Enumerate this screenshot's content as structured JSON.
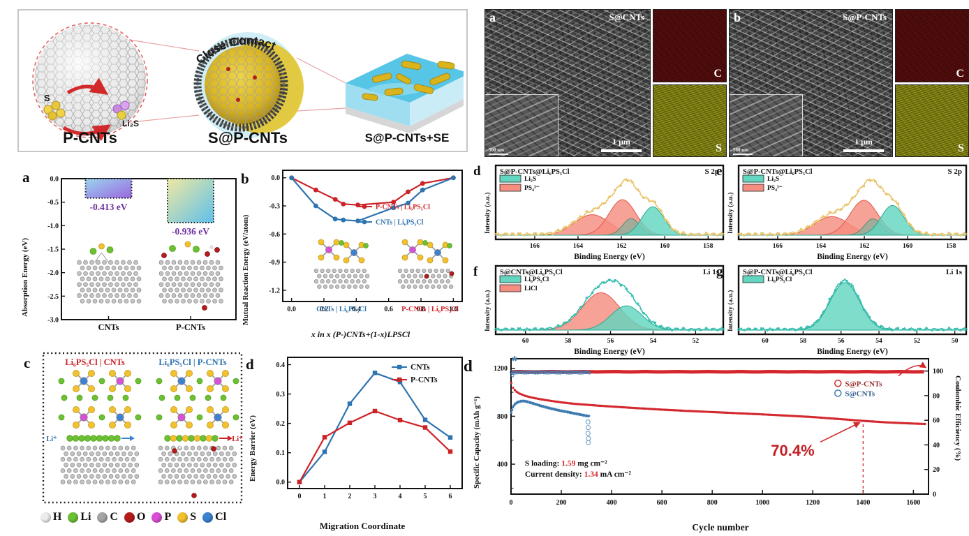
{
  "schematic": {
    "close_contact": "Close Contact",
    "label_s": "S",
    "label_li2s": "Li₂S",
    "label_pcnts": "P-CNTs",
    "label_spcnts": "S@P-CNTs",
    "label_spcnts_se": "S@P-CNTs+SE"
  },
  "sem": {
    "a": {
      "letter": "a",
      "title": "S@CNTs",
      "scale_main": "1 μm",
      "scale_inset": "500 nm",
      "map_c": "C",
      "map_s": "S"
    },
    "b": {
      "letter": "b",
      "title": "S@P-CNTs",
      "scale_main": "1 μm",
      "scale_inset": "500 nm",
      "map_c": "C",
      "map_s": "S"
    }
  },
  "chart_data": [
    {
      "id": "absorption",
      "type": "bar",
      "panel_letter": "a",
      "ylabel": "Absorption Energy (eV)",
      "ylim": [
        -3.0,
        0.0
      ],
      "yticks": [
        0.0,
        -0.5,
        -1.0,
        -1.5,
        -2.0,
        -2.5,
        -3.0
      ],
      "categories": [
        "CNTs",
        "P-CNTs"
      ],
      "values": [
        -0.413,
        -0.936
      ],
      "value_labels": [
        "-0.413 eV",
        "-0.936 eV"
      ],
      "value_color": "#7030a0",
      "bar_gradients": [
        [
          "#9bd4ee",
          "#9a68e0"
        ],
        [
          "#efe9a2",
          "#5fc0ea"
        ]
      ]
    },
    {
      "id": "mutual_reaction",
      "type": "line",
      "panel_letter": "b",
      "ylabel": "Mutual Reaction Energy (eV/atom)",
      "xlabel": "x in x (P-)CNTs+(1-x)LPSCl",
      "x": [
        0.0,
        0.15,
        0.27,
        0.32,
        0.41,
        0.63,
        0.72,
        0.81,
        1.0
      ],
      "series": [
        {
          "name": "P-CNTs | Li₆PS₅Cl",
          "color": "#cc2328",
          "values": [
            0.0,
            -0.13,
            -0.23,
            -0.28,
            -0.29,
            -0.26,
            -0.15,
            -0.06,
            0.0
          ]
        },
        {
          "name": "CNTs | Li₆PS₅Cl",
          "color": "#2e74b0",
          "values": [
            0.0,
            -0.3,
            -0.44,
            -0.45,
            -0.46,
            -0.32,
            -0.27,
            -0.13,
            0.0
          ]
        }
      ],
      "yticks": [
        0.0,
        -0.3,
        -0.6,
        -0.9,
        -1.2
      ],
      "xticks": [
        0.0,
        0.2,
        0.4,
        0.6,
        0.8,
        1.0
      ],
      "inset_labels": [
        {
          "text": "CNTs | Li₆PS₅Cl",
          "color": "#2e74b0"
        },
        {
          "text": "P-CNTs | Li₆PS₅Cl",
          "color": "#cc2328"
        }
      ]
    },
    {
      "id": "interface_models",
      "type": "diagram",
      "panel_letter": "c",
      "titles": [
        {
          "text": "Li₆PS₅Cl | CNTs",
          "color": "#cc2328"
        },
        {
          "text": "Li₆PS₅Cl | P-CNTs",
          "color": "#2e74b0"
        }
      ],
      "li_labels": [
        {
          "text": "Li⁺",
          "color": "#2e74b0"
        },
        {
          "text": "Li⁺",
          "color": "#cc2328"
        }
      ],
      "legend": [
        {
          "label": "H",
          "color": "#ececec"
        },
        {
          "label": "Li",
          "color": "#6cc035"
        },
        {
          "label": "C",
          "color": "#a6a6a6"
        },
        {
          "label": "O",
          "color": "#b51d1d"
        },
        {
          "label": "P",
          "color": "#d94fd9"
        },
        {
          "label": "S",
          "color": "#f2c12e"
        },
        {
          "label": "Cl",
          "color": "#3b82d0"
        }
      ]
    },
    {
      "id": "energy_barrier",
      "type": "line",
      "panel_letter": "d",
      "ylabel": "Energy Barrier (eV)",
      "xlabel": "Migration Coordinate",
      "x": [
        0,
        1,
        2,
        3,
        4,
        5,
        6
      ],
      "series": [
        {
          "name": "CNTs",
          "color": "#2e74b0",
          "values": [
            0.0,
            0.103,
            0.267,
            0.372,
            0.341,
            0.212,
            0.152
          ]
        },
        {
          "name": "P-CNTs",
          "color": "#cc2328",
          "values": [
            0.0,
            0.153,
            0.202,
            0.242,
            0.211,
            0.186,
            0.104
          ]
        }
      ],
      "yticks": [
        0.0,
        0.1,
        0.2,
        0.3,
        0.4
      ],
      "xticks": [
        0,
        1,
        2,
        3,
        4,
        5,
        6
      ],
      "legend_position": "top-right"
    },
    {
      "id": "xps_s2p_d",
      "type": "area",
      "panel_letter": "d",
      "title": "S@P-CNTs@Li₆PS₅Cl",
      "corner": "S 2p",
      "ylabel": "Intensity (a.u.)",
      "xlabel": "Binding Energy (eV)",
      "xlim": [
        167.8,
        157.3
      ],
      "xticks": [
        166,
        164,
        162,
        160,
        158
      ],
      "legend": [
        {
          "label": "Li₂S",
          "color": "#63d6c0"
        },
        {
          "label": "PS₄³⁻",
          "color": "#f58e80"
        }
      ],
      "envelope_color": "#e9c36a",
      "peaks": [
        {
          "center": 163.35,
          "width": 1.15,
          "amp": 0.52,
          "fill": "#f58e80",
          "stroke": "#e2574a"
        },
        {
          "center": 161.95,
          "width": 0.88,
          "amp": 0.9,
          "fill": "#f58e80",
          "stroke": "#e2574a"
        },
        {
          "center": 161.55,
          "width": 0.55,
          "amp": 0.42,
          "fill": "#8fae9a",
          "stroke": "#5d8a74"
        },
        {
          "center": 160.55,
          "width": 0.72,
          "amp": 0.72,
          "fill": "#63d6c0",
          "stroke": "#2aa893"
        }
      ]
    },
    {
      "id": "xps_s2p_e",
      "type": "area",
      "panel_letter": "e",
      "title": "S@P-CNTs@Li₆PS₅Cl",
      "corner": "S 2p",
      "ylabel": "Intensity (a.u.)",
      "xlabel": "Binding Energy (eV)",
      "xlim": [
        167.8,
        157.3
      ],
      "xticks": [
        166,
        164,
        162,
        160,
        158
      ],
      "legend": [
        {
          "label": "Li₂S",
          "color": "#63d6c0"
        },
        {
          "label": "PS₄³⁻",
          "color": "#f58e80"
        }
      ],
      "envelope_color": "#e9c36a",
      "peaks": [
        {
          "center": 163.5,
          "width": 1.12,
          "amp": 0.5,
          "fill": "#f58e80",
          "stroke": "#e2574a"
        },
        {
          "center": 162.02,
          "width": 0.9,
          "amp": 0.94,
          "fill": "#f58e80",
          "stroke": "#e2574a"
        },
        {
          "center": 161.6,
          "width": 0.55,
          "amp": 0.44,
          "fill": "#8fae9a",
          "stroke": "#5d8a74"
        },
        {
          "center": 160.7,
          "width": 0.75,
          "amp": 0.8,
          "fill": "#63d6c0",
          "stroke": "#2aa893"
        }
      ]
    },
    {
      "id": "xps_li1s_f",
      "type": "area",
      "panel_letter": "f",
      "title": "S@CNTs@Li₆PS₅Cl",
      "corner": "Li 1s",
      "ylabel": "Intensity (a.u.)",
      "xlabel": "Binding Energy (eV)",
      "xlim": [
        61.4,
        50.7
      ],
      "xticks": [
        60,
        58,
        56,
        54,
        52
      ],
      "legend": [
        {
          "label": "Li₆PS₅Cl",
          "color": "#63d6c0"
        },
        {
          "label": "LiCl",
          "color": "#f58e80"
        }
      ],
      "envelope_color": "#35bdae",
      "peaks": [
        {
          "center": 56.45,
          "width": 1.25,
          "amp": 0.8,
          "fill": "#f58e80",
          "stroke": "#e2574a"
        },
        {
          "center": 55.25,
          "width": 1.05,
          "amp": 0.52,
          "fill": "#63d6c0",
          "stroke": "#2aa893"
        }
      ]
    },
    {
      "id": "xps_li1s_g",
      "type": "area",
      "panel_letter": "g",
      "title": "S@P-CNTs@Li₆PS₅Cl",
      "corner": "Li 1s",
      "ylabel": "Intensity (a.u.)",
      "xlabel": "Binding Energy (eV)",
      "xlim": [
        61.4,
        49.4
      ],
      "xticks": [
        60,
        58,
        56,
        54,
        52,
        50
      ],
      "legend": [
        {
          "label": "Li₆PS₅Cl",
          "color": "#63d6c0"
        }
      ],
      "envelope_color": "#35bdae",
      "peaks": [
        {
          "center": 55.8,
          "width": 1.1,
          "amp": 0.9,
          "fill": "#63d6c0",
          "stroke": "#2aa893"
        }
      ]
    },
    {
      "id": "cycling",
      "type": "scatter",
      "panel_letter": "d",
      "ylabel_left": "Specific Capacity (mAh g⁻¹)",
      "ylabel_right": "Coulombic Efficiency (%)",
      "xlabel": "Cycle number",
      "xlim": [
        0,
        1660
      ],
      "xticks": [
        0,
        200,
        400,
        600,
        800,
        1000,
        1200,
        1400,
        1600
      ],
      "ylim_left": [
        150,
        1280
      ],
      "yticks_left": [
        400,
        800,
        1200
      ],
      "ylim_right": [
        0,
        110
      ],
      "yticks_right": [
        0,
        20,
        40,
        60,
        80,
        100
      ],
      "legend": [
        {
          "label": "S@P-CNTs",
          "color": "#d3282e",
          "text_color": "#9b2c2c"
        },
        {
          "label": "S@CNTs",
          "color": "#3f7cb0",
          "text_color": "#2f5d8a"
        }
      ],
      "retention_label": "70.4%",
      "retention_color": "#c22026",
      "retention_x": 1120,
      "retention_y": 470,
      "dashed_line_x": 1400,
      "star_marker": "*",
      "ce_red": 99.4,
      "ce_blue": 98.9,
      "annotations": [
        {
          "prefix": "S loading: ",
          "value": "1.59",
          "suffix": " mg cm⁻²"
        },
        {
          "prefix": "Current density: ",
          "value": "1.34",
          "suffix": " mA cm⁻²"
        }
      ],
      "red_capacity": [
        [
          1,
          1075
        ],
        [
          3,
          1058
        ],
        [
          6,
          1042
        ],
        [
          10,
          1028
        ],
        [
          20,
          1005
        ],
        [
          35,
          985
        ],
        [
          60,
          965
        ],
        [
          90,
          950
        ],
        [
          120,
          938
        ],
        [
          160,
          925
        ],
        [
          200,
          913
        ],
        [
          250,
          901
        ],
        [
          300,
          893
        ],
        [
          350,
          885
        ],
        [
          400,
          878
        ],
        [
          500,
          865
        ],
        [
          600,
          853
        ],
        [
          700,
          843
        ],
        [
          800,
          834
        ],
        [
          900,
          825
        ],
        [
          1000,
          816
        ],
        [
          1100,
          806
        ],
        [
          1200,
          795
        ],
        [
          1300,
          780
        ],
        [
          1400,
          764
        ],
        [
          1500,
          751
        ],
        [
          1600,
          742
        ],
        [
          1650,
          738
        ]
      ],
      "blue_capacity": [
        [
          1,
          828
        ],
        [
          3,
          848
        ],
        [
          6,
          868
        ],
        [
          10,
          886
        ],
        [
          15,
          900
        ],
        [
          22,
          912
        ],
        [
          30,
          920
        ],
        [
          40,
          926
        ],
        [
          52,
          927
        ],
        [
          65,
          921
        ],
        [
          80,
          912
        ],
        [
          100,
          899
        ],
        [
          120,
          886
        ],
        [
          145,
          872
        ],
        [
          170,
          859
        ],
        [
          200,
          845
        ],
        [
          230,
          833
        ],
        [
          260,
          820
        ],
        [
          290,
          808
        ],
        [
          310,
          800
        ]
      ],
      "blue_drop_points": [
        [
          306,
          752
        ],
        [
          307,
          705
        ],
        [
          306,
          658
        ],
        [
          308,
          615
        ],
        [
          307,
          580
        ]
      ]
    }
  ]
}
